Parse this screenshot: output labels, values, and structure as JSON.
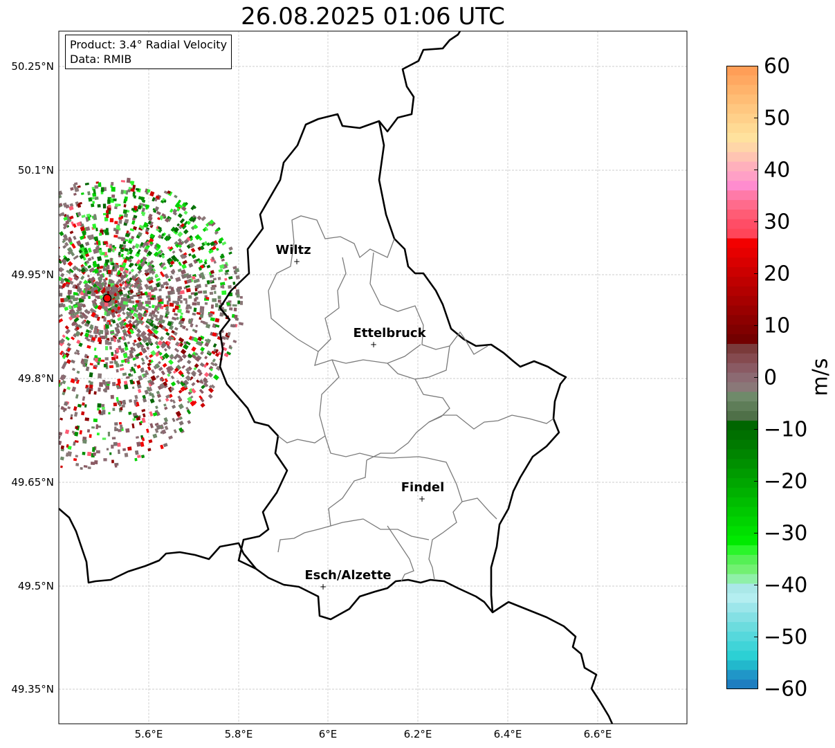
{
  "title": "26.08.2025 01:06 UTC",
  "info": {
    "product": "Product: 3.4° Radial Velocity",
    "source": "Data: RMIB"
  },
  "map": {
    "lon_range": [
      5.4,
      6.8
    ],
    "lat_range": [
      49.3,
      50.3
    ],
    "lat_ticks": [
      {
        "value": 50.25,
        "label": "50.25°N"
      },
      {
        "value": 50.1,
        "label": "50.1°N"
      },
      {
        "value": 49.95,
        "label": "49.95°N"
      },
      {
        "value": 49.8,
        "label": "49.8°N"
      },
      {
        "value": 49.65,
        "label": "49.65°N"
      },
      {
        "value": 49.5,
        "label": "49.5°N"
      },
      {
        "value": 49.35,
        "label": "49.35°N"
      }
    ],
    "lon_ticks": [
      {
        "value": 5.6,
        "label": "5.6°E"
      },
      {
        "value": 5.8,
        "label": "5.8°E"
      },
      {
        "value": 6.0,
        "label": "6°E"
      },
      {
        "value": 6.2,
        "label": "6.2°E"
      },
      {
        "value": 6.4,
        "label": "6.4°E"
      },
      {
        "value": 6.6,
        "label": "6.6°E"
      }
    ],
    "radar_site": {
      "lon": 5.505,
      "lat": 49.915,
      "color": "#ff0000"
    },
    "cities": [
      {
        "name": "Wiltz",
        "lon": 5.933,
        "lat": 49.966
      },
      {
        "name": "Ettelbruck",
        "lon": 6.104,
        "lat": 49.848
      },
      {
        "name": "Findel",
        "lon": 6.21,
        "lat": 49.627
      },
      {
        "name": "Esch/Alzette",
        "lon": 5.988,
        "lat": 49.5
      }
    ]
  },
  "colorbar": {
    "label": "m/s",
    "min": -60,
    "max": 60,
    "ticks": [
      {
        "value": 60,
        "label": "60"
      },
      {
        "value": 50,
        "label": "50"
      },
      {
        "value": 40,
        "label": "40"
      },
      {
        "value": 30,
        "label": "30"
      },
      {
        "value": 20,
        "label": "20"
      },
      {
        "value": 10,
        "label": "10"
      },
      {
        "value": 0,
        "label": "0"
      },
      {
        "value": -10,
        "label": "−10"
      },
      {
        "value": -20,
        "label": "−20"
      },
      {
        "value": -30,
        "label": "−30"
      },
      {
        "value": -40,
        "label": "−40"
      },
      {
        "value": -50,
        "label": "−50"
      },
      {
        "value": -60,
        "label": "−60"
      }
    ],
    "colors_top_to_bottom": [
      "#ff9e57",
      "#ffa861",
      "#ffb36b",
      "#ffbd75",
      "#ffc780",
      "#ffd08a",
      "#ffda94",
      "#ffe29e",
      "#ffd6a8",
      "#ffc4b2",
      "#ffb0bc",
      "#ffa0c6",
      "#ff8ccf",
      "#ff7aa8",
      "#ff6b8c",
      "#ff5c75",
      "#ff4d66",
      "#ff4559",
      "#f20000",
      "#e60000",
      "#d90000",
      "#cc0000",
      "#bf0000",
      "#b30000",
      "#a60000",
      "#990000",
      "#8c0000",
      "#800000",
      "#730000",
      "#7a3a3a",
      "#854a4f",
      "#8a5a63",
      "#8c6a72",
      "#8a7878",
      "#6f8a6a",
      "#5e7d58",
      "#4f7048",
      "#006600",
      "#007000",
      "#007a00",
      "#008500",
      "#009000",
      "#009b00",
      "#00a600",
      "#00b100",
      "#00bd00",
      "#00c800",
      "#00d300",
      "#00df00",
      "#00ea00",
      "#2af52a",
      "#55f055",
      "#72f072",
      "#8ff0a8",
      "#aae8e8",
      "#b4eef0",
      "#9ce6ea",
      "#84e0e4",
      "#6cdcde",
      "#56d8dc",
      "#40d4d8",
      "#2cd0d4",
      "#22b8cc",
      "#2096c8",
      "#1e7ec0"
    ]
  }
}
